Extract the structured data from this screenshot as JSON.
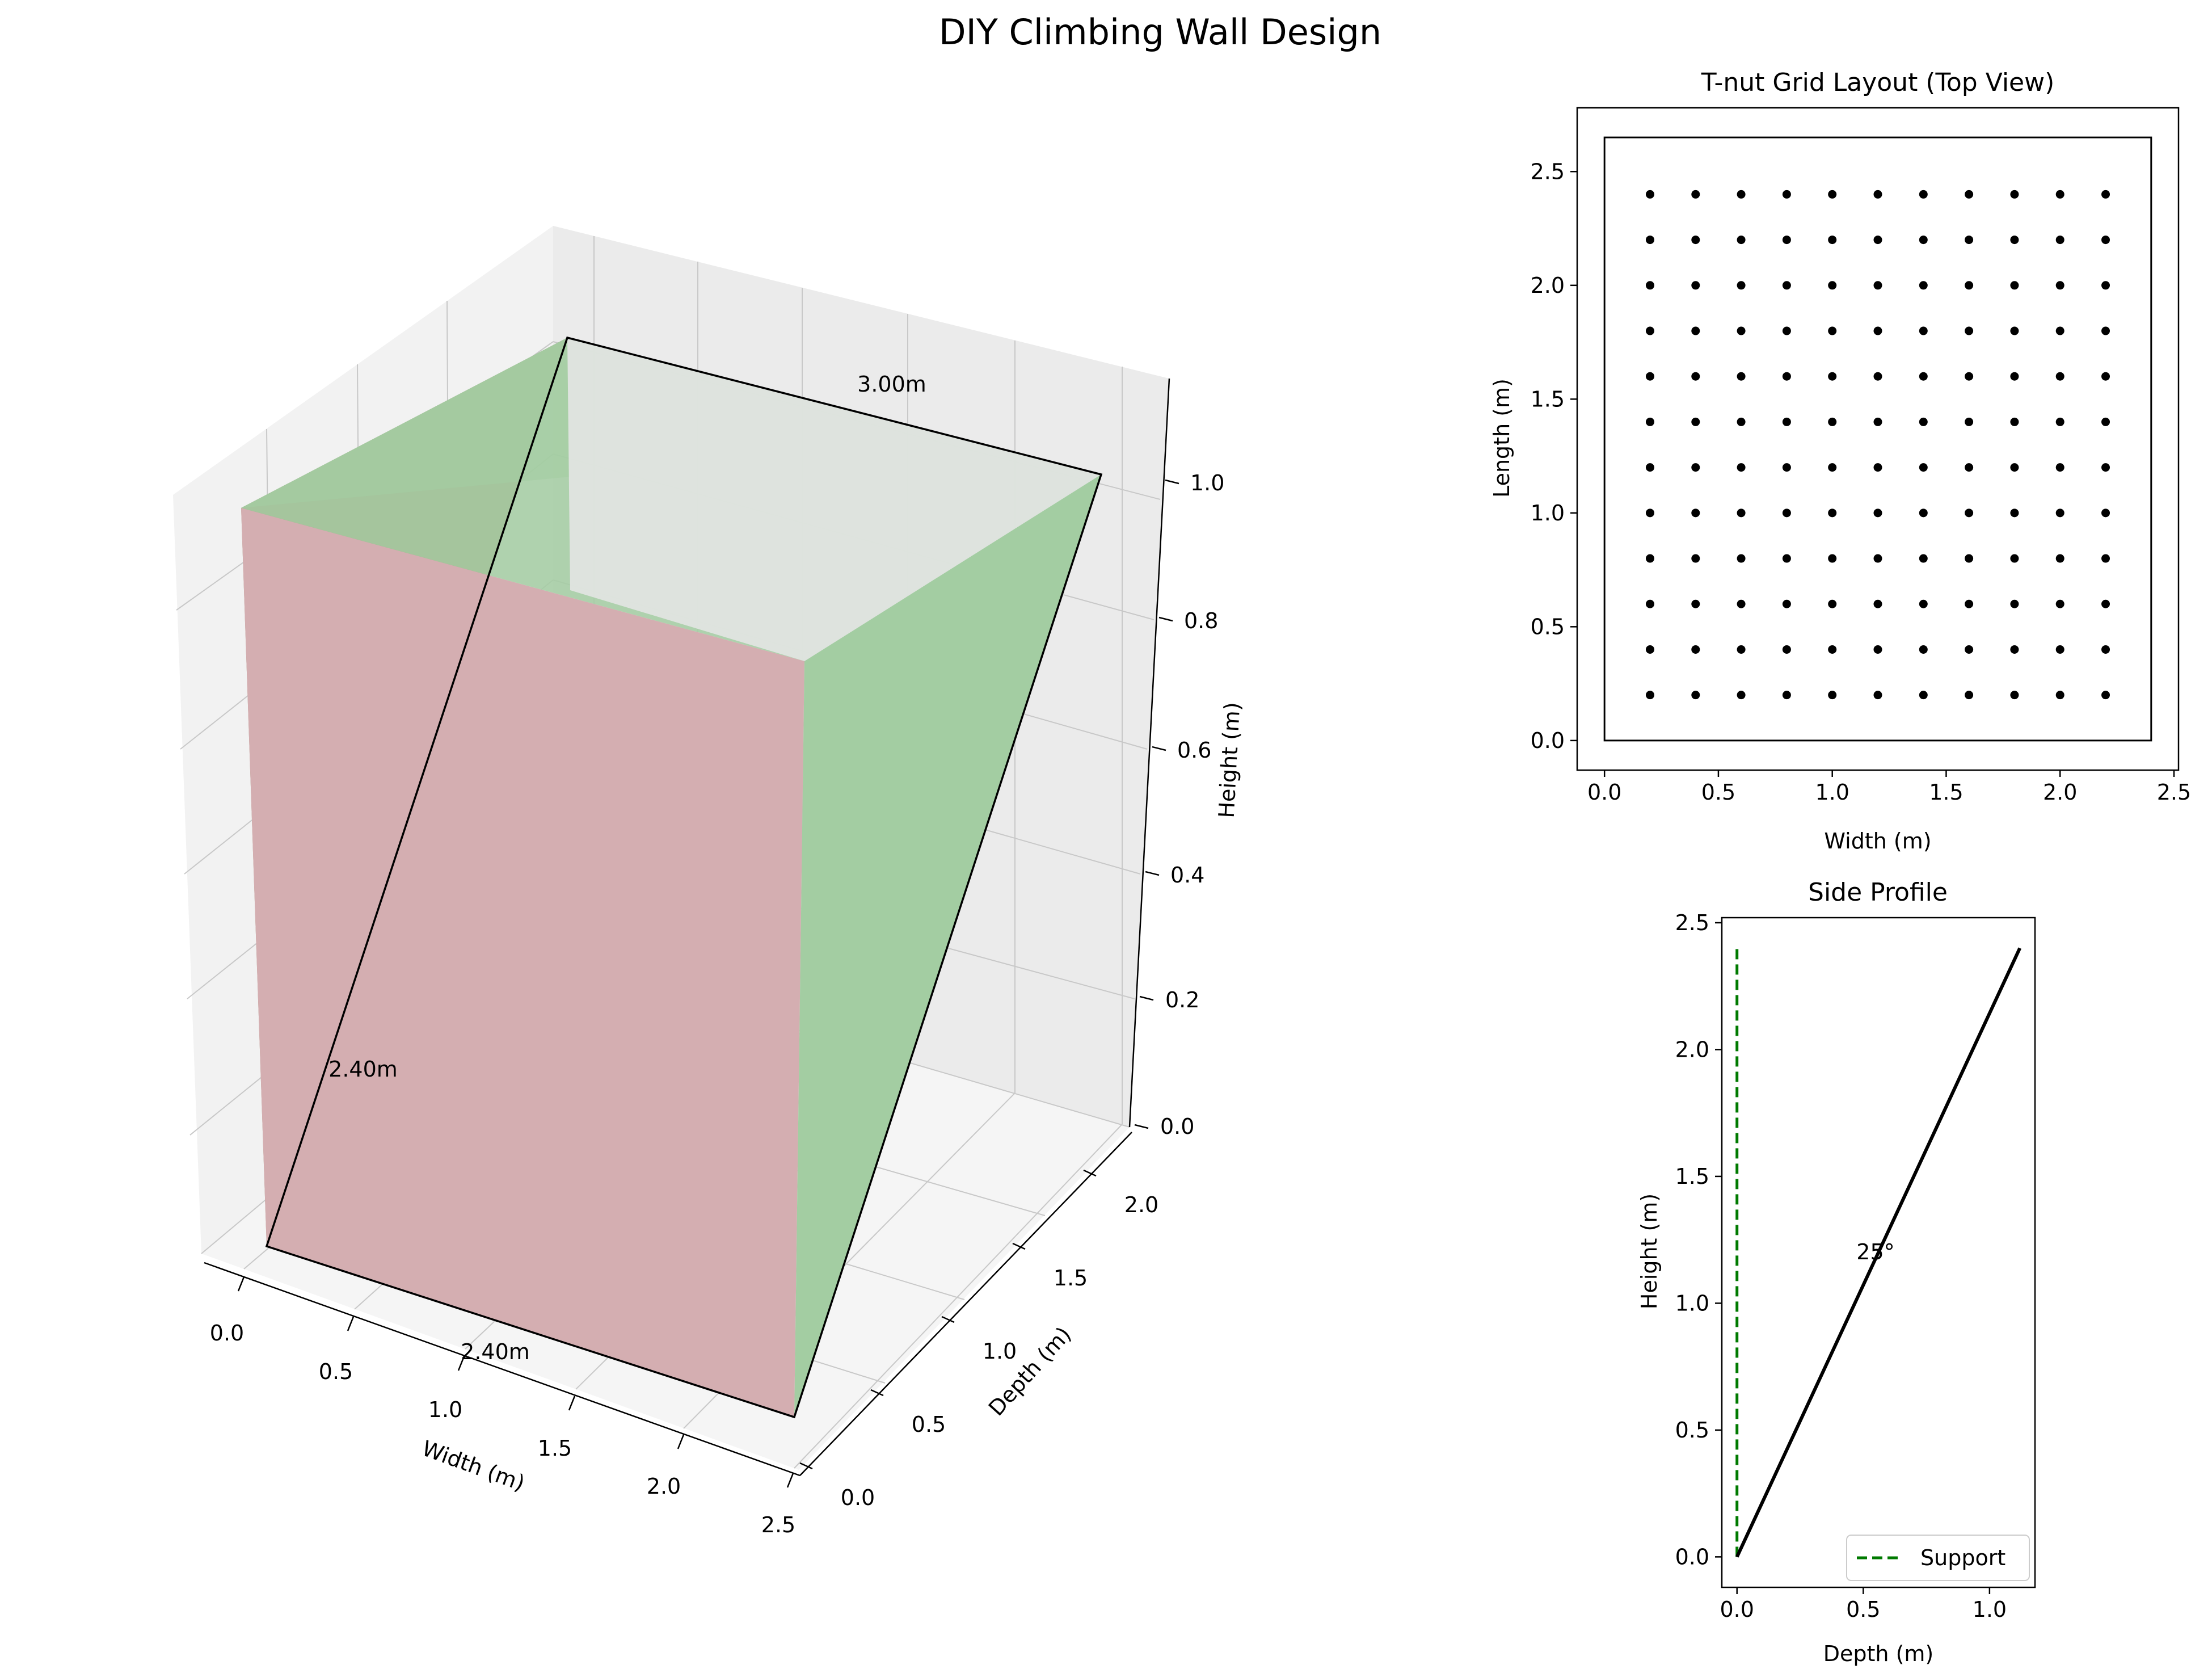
{
  "figure": {
    "title": "DIY Climbing Wall Design"
  },
  "chart_data": [
    {
      "type": "surface3d",
      "panel": "3d-view",
      "xlabel": "Width (m)",
      "ylabel": "Depth (m)",
      "zlabel": "Height (m)",
      "x_ticks": [
        "0.0",
        "0.5",
        "1.0",
        "1.5",
        "2.0",
        "2.5"
      ],
      "y_ticks": [
        "0.0",
        "0.5",
        "1.0",
        "1.5",
        "2.0"
      ],
      "z_ticks": [
        "0.0",
        "0.2",
        "0.4",
        "0.6",
        "0.8",
        "1.0"
      ],
      "annotations": [
        "3.00m",
        "2.40m",
        "2.40m"
      ],
      "wall_outline": [
        [
          0.0,
          0.0,
          0.0
        ],
        [
          2.4,
          0.0,
          0.0
        ],
        [
          2.4,
          2.4,
          1.0
        ],
        [
          0.0,
          2.4,
          1.0
        ]
      ],
      "colors": {
        "front_face": "#d4aeb1",
        "side_face": "#a3cda2",
        "left_face": "#ab9c80",
        "outline": "#000000"
      }
    },
    {
      "type": "scatter",
      "panel": "top-view",
      "title": "T-nut Grid Layout (Top View)",
      "xlabel": "Width (m)",
      "ylabel": "Length (m)",
      "x_ticks": [
        "0.0",
        "0.5",
        "1.0",
        "1.5",
        "2.0",
        "2.5"
      ],
      "y_ticks": [
        "0.0",
        "0.5",
        "1.0",
        "1.5",
        "2.0",
        "2.5"
      ],
      "xlim": [
        -0.12,
        2.52
      ],
      "ylim": [
        -0.13,
        2.78
      ],
      "outline": {
        "x": [
          0.0,
          2.4
        ],
        "y": [
          0.0,
          2.65
        ]
      },
      "grid_x": [
        0.2,
        0.4,
        0.6,
        0.8,
        1.0,
        1.2,
        1.4,
        1.6,
        1.8,
        2.0,
        2.2
      ],
      "grid_y": [
        0.2,
        0.4,
        0.6,
        0.8,
        1.0,
        1.2,
        1.4,
        1.6,
        1.8,
        2.0,
        2.2,
        2.4
      ]
    },
    {
      "type": "line",
      "panel": "side-profile",
      "title": "Side Profile",
      "xlabel": "Depth (m)",
      "ylabel": "Height (m)",
      "x_ticks": [
        "0.0",
        "0.5",
        "1.0"
      ],
      "y_ticks": [
        "0.0",
        "0.5",
        "1.0",
        "1.5",
        "2.0",
        "2.5"
      ],
      "xlim": [
        -0.06,
        1.18
      ],
      "ylim": [
        -0.12,
        2.52
      ],
      "series": [
        {
          "name": "",
          "x": [
            0.0,
            1.12
          ],
          "y": [
            0.0,
            2.4
          ],
          "color": "#000000",
          "style": "solid"
        },
        {
          "name": "Support",
          "x": [
            0.0,
            0.0
          ],
          "y": [
            0.0,
            2.4
          ],
          "color": "#007a00",
          "style": "dashed"
        }
      ],
      "annotation": "25°",
      "annotation_pos": [
        0.5,
        1.2
      ],
      "legend": "lower-right"
    }
  ]
}
